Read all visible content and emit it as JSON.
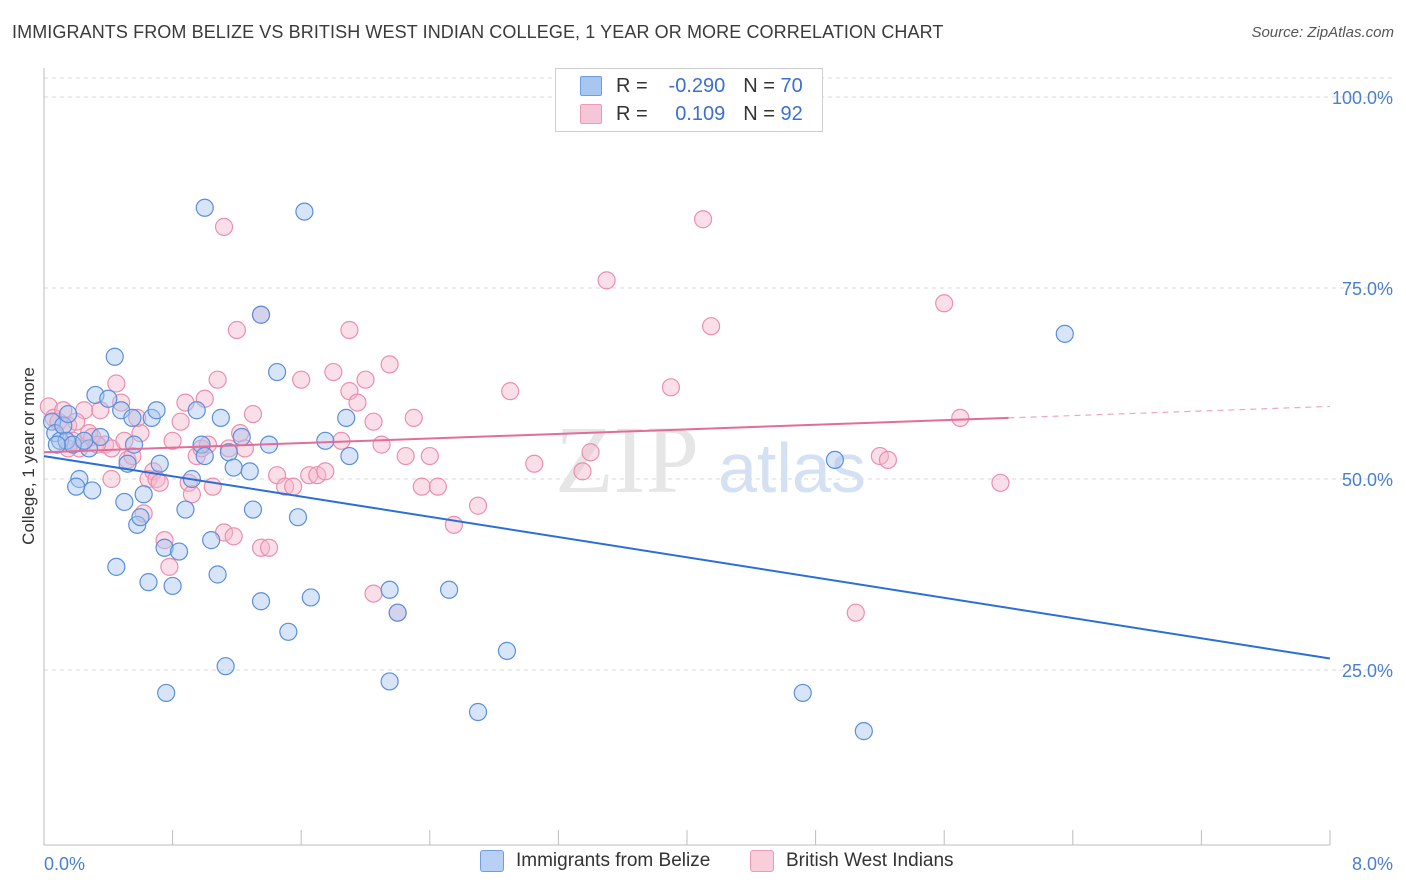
{
  "title": "IMMIGRANTS FROM BELIZE VS BRITISH WEST INDIAN COLLEGE, 1 YEAR OR MORE CORRELATION CHART",
  "source": "Source: ZipAtlas.com",
  "watermark": {
    "zip": "ZIP",
    "atlas": "atlas"
  },
  "legend": {
    "r_label": "R =",
    "n_label": "N =",
    "rows": [
      {
        "r": "-0.290",
        "n": "70",
        "color": "#a9c6f0"
      },
      {
        "r": "0.109",
        "n": "92",
        "color": "#f5b8cb"
      }
    ]
  },
  "bottom_legend": [
    {
      "label": "Immigrants from Belize",
      "color": "#a9c6f0"
    },
    {
      "label": "British West Indians",
      "color": "#f5b8cb"
    }
  ],
  "chart_data": {
    "type": "scatter",
    "title": "IMMIGRANTS FROM BELIZE VS BRITISH WEST INDIAN COLLEGE, 1 YEAR OR MORE CORRELATION CHART",
    "xlabel": "",
    "ylabel": "College, 1 year or more",
    "xlim": [
      0,
      8
    ],
    "ylim": [
      5,
      105
    ],
    "x_tick_labels": [
      "0.0%",
      "8.0%"
    ],
    "y_ticks": [
      25,
      50,
      75,
      100
    ],
    "y_tick_labels": [
      "25.0%",
      "50.0%",
      "75.0%",
      "100.0%"
    ],
    "colors": {
      "belize": "#5b8fdc",
      "belize_line": "#2b6fd6",
      "bwi": "#eb8fae",
      "bwi_line": "#e46c98",
      "grid": "#d8d8d8",
      "tick": "#4a7fcf"
    },
    "series": [
      {
        "name": "Immigrants from Belize",
        "trend": {
          "x0": 0.0,
          "y0": 53.0,
          "x1": 8.0,
          "y1": 26.5,
          "dashed_from": null
        },
        "points": [
          [
            0.05,
            57.5
          ],
          [
            0.07,
            56.0
          ],
          [
            0.1,
            55.0
          ],
          [
            0.12,
            57.0
          ],
          [
            0.14,
            55.0
          ],
          [
            0.18,
            54.5
          ],
          [
            0.22,
            50.0
          ],
          [
            0.2,
            49.0
          ],
          [
            0.28,
            54.0
          ],
          [
            0.3,
            48.5
          ],
          [
            0.35,
            55.5
          ],
          [
            0.32,
            61.0
          ],
          [
            0.4,
            60.5
          ],
          [
            0.44,
            66.0
          ],
          [
            0.48,
            59.0
          ],
          [
            0.5,
            47.0
          ],
          [
            0.55,
            58.0
          ],
          [
            0.56,
            54.5
          ],
          [
            0.58,
            44.0
          ],
          [
            0.6,
            45.0
          ],
          [
            0.62,
            48.0
          ],
          [
            0.67,
            58.0
          ],
          [
            0.7,
            59.0
          ],
          [
            0.72,
            52.0
          ],
          [
            0.75,
            41.0
          ],
          [
            0.8,
            36.0
          ],
          [
            0.84,
            40.5
          ],
          [
            0.88,
            46.0
          ],
          [
            0.92,
            50.0
          ],
          [
            0.95,
            59.0
          ],
          [
            0.98,
            54.5
          ],
          [
            1.0,
            53.0
          ],
          [
            1.04,
            42.0
          ],
          [
            1.08,
            37.5
          ],
          [
            1.1,
            58.0
          ],
          [
            1.15,
            53.5
          ],
          [
            1.18,
            51.5
          ],
          [
            1.23,
            55.5
          ],
          [
            1.28,
            51.0
          ],
          [
            1.3,
            46.0
          ],
          [
            1.35,
            34.0
          ],
          [
            1.4,
            54.5
          ],
          [
            1.45,
            64.0
          ],
          [
            1.52,
            30.0
          ],
          [
            1.58,
            45.0
          ],
          [
            1.66,
            34.5
          ],
          [
            1.75,
            55.0
          ],
          [
            1.88,
            58.0
          ],
          [
            1.9,
            53.0
          ],
          [
            2.15,
            35.5
          ],
          [
            2.2,
            32.5
          ],
          [
            0.76,
            22.0
          ],
          [
            1.13,
            25.5
          ],
          [
            2.15,
            23.5
          ],
          [
            2.52,
            35.5
          ],
          [
            2.7,
            19.5
          ],
          [
            2.88,
            27.5
          ],
          [
            4.72,
            22.0
          ],
          [
            4.92,
            52.5
          ],
          [
            5.1,
            17.0
          ],
          [
            6.35,
            69.0
          ],
          [
            1.0,
            85.5
          ],
          [
            1.62,
            85.0
          ],
          [
            1.35,
            71.5
          ],
          [
            0.65,
            36.5
          ],
          [
            0.45,
            38.5
          ],
          [
            0.25,
            55.0
          ],
          [
            0.15,
            58.5
          ],
          [
            0.08,
            54.5
          ],
          [
            0.52,
            52.0
          ]
        ]
      },
      {
        "name": "British West Indians",
        "trend": {
          "x0": 0.0,
          "y0": 53.5,
          "x1": 8.0,
          "y1": 59.5,
          "dashed_from": 6.0
        },
        "points": [
          [
            0.03,
            59.5
          ],
          [
            0.06,
            58.0
          ],
          [
            0.09,
            57.5
          ],
          [
            0.12,
            59.0
          ],
          [
            0.15,
            57.0
          ],
          [
            0.18,
            55.0
          ],
          [
            0.22,
            54.0
          ],
          [
            0.25,
            59.0
          ],
          [
            0.28,
            56.0
          ],
          [
            0.3,
            55.5
          ],
          [
            0.35,
            59.0
          ],
          [
            0.38,
            54.5
          ],
          [
            0.42,
            50.0
          ],
          [
            0.45,
            62.5
          ],
          [
            0.48,
            60.0
          ],
          [
            0.52,
            52.5
          ],
          [
            0.55,
            53.0
          ],
          [
            0.6,
            56.0
          ],
          [
            0.62,
            45.5
          ],
          [
            0.65,
            50.0
          ],
          [
            0.68,
            51.0
          ],
          [
            0.7,
            50.0
          ],
          [
            0.72,
            49.5
          ],
          [
            0.75,
            42.0
          ],
          [
            0.78,
            38.5
          ],
          [
            0.8,
            55.0
          ],
          [
            0.88,
            60.0
          ],
          [
            0.9,
            49.5
          ],
          [
            0.92,
            48.0
          ],
          [
            0.95,
            53.0
          ],
          [
            0.98,
            54.0
          ],
          [
            1.02,
            54.5
          ],
          [
            1.05,
            49.0
          ],
          [
            1.08,
            63.0
          ],
          [
            1.12,
            43.0
          ],
          [
            1.15,
            54.0
          ],
          [
            1.18,
            42.5
          ],
          [
            1.22,
            56.0
          ],
          [
            1.25,
            54.0
          ],
          [
            1.3,
            58.5
          ],
          [
            1.35,
            41.0
          ],
          [
            1.4,
            41.0
          ],
          [
            1.45,
            50.5
          ],
          [
            1.5,
            49.0
          ],
          [
            1.55,
            49.0
          ],
          [
            1.6,
            63.0
          ],
          [
            1.65,
            50.5
          ],
          [
            1.7,
            50.5
          ],
          [
            1.75,
            51.0
          ],
          [
            1.8,
            64.0
          ],
          [
            1.85,
            55.0
          ],
          [
            1.9,
            61.5
          ],
          [
            1.95,
            60.0
          ],
          [
            2.0,
            63.0
          ],
          [
            2.05,
            57.5
          ],
          [
            2.1,
            54.5
          ],
          [
            2.15,
            65.0
          ],
          [
            2.2,
            32.5
          ],
          [
            2.25,
            53.0
          ],
          [
            2.3,
            58.0
          ],
          [
            2.35,
            49.0
          ],
          [
            2.4,
            53.0
          ],
          [
            2.45,
            49.0
          ],
          [
            2.55,
            44.0
          ],
          [
            2.7,
            46.5
          ],
          [
            2.9,
            61.5
          ],
          [
            3.05,
            52.0
          ],
          [
            3.35,
            51.0
          ],
          [
            3.4,
            53.5
          ],
          [
            3.5,
            76.0
          ],
          [
            3.9,
            62.0
          ],
          [
            4.1,
            84.0
          ],
          [
            4.15,
            70.0
          ],
          [
            5.05,
            32.5
          ],
          [
            5.2,
            53.0
          ],
          [
            5.25,
            52.5
          ],
          [
            5.6,
            73.0
          ],
          [
            5.7,
            58.0
          ],
          [
            5.95,
            49.5
          ],
          [
            1.12,
            83.0
          ],
          [
            1.35,
            71.5
          ],
          [
            1.2,
            69.5
          ],
          [
            1.9,
            69.5
          ],
          [
            0.42,
            54.0
          ],
          [
            0.58,
            58.0
          ],
          [
            0.33,
            54.5
          ],
          [
            0.15,
            54.0
          ],
          [
            0.2,
            57.5
          ],
          [
            0.5,
            55.0
          ],
          [
            0.85,
            57.5
          ],
          [
            1.0,
            60.5
          ],
          [
            2.05,
            35.0
          ]
        ]
      }
    ]
  }
}
